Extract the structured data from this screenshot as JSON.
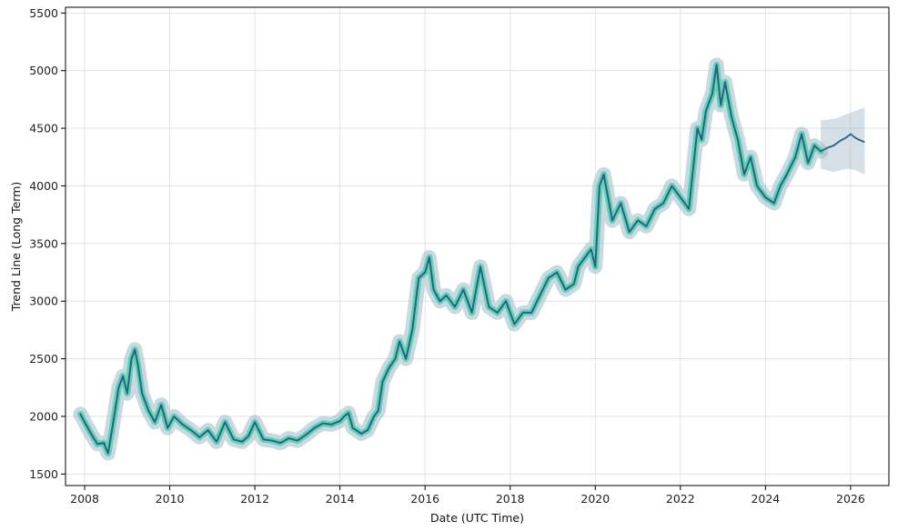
{
  "chart_data": {
    "type": "line",
    "title": "",
    "xlabel": "Date (UTC Time)",
    "ylabel": "Trend Line (Long Term)",
    "xlim": [
      2007.55,
      2026.9
    ],
    "ylim": [
      1400,
      5550
    ],
    "x_ticks": [
      "2008",
      "2010",
      "2012",
      "2014",
      "2016",
      "2018",
      "2020",
      "2022",
      "2024",
      "2026"
    ],
    "x_tick_values": [
      2008,
      2010,
      2012,
      2014,
      2016,
      2018,
      2020,
      2022,
      2024,
      2026
    ],
    "y_ticks": [
      "1500",
      "2000",
      "2500",
      "3000",
      "3500",
      "4000",
      "4500",
      "5000",
      "5500"
    ],
    "y_tick_values": [
      1500,
      2000,
      2500,
      3000,
      3500,
      4000,
      4500,
      5000,
      5500
    ],
    "grid": true,
    "colors": {
      "history_glow": "#5fd3b4",
      "trend_line": "#2c5f86",
      "confidence_band": "#9fb8c9"
    },
    "series": [
      {
        "role": "history",
        "x": [
          2007.9,
          2008.0,
          2008.15,
          2008.3,
          2008.45,
          2008.55,
          2008.65,
          2008.8,
          2008.9,
          2009.0,
          2009.1,
          2009.18,
          2009.25,
          2009.35,
          2009.5,
          2009.65,
          2009.8,
          2009.95,
          2010.1,
          2010.3,
          2010.5,
          2010.7,
          2010.9,
          2011.1,
          2011.3,
          2011.5,
          2011.7,
          2011.85,
          2012.0,
          2012.2,
          2012.4,
          2012.6,
          2012.8,
          2013.0,
          2013.2,
          2013.4,
          2013.6,
          2013.8,
          2014.0,
          2014.1,
          2014.2,
          2014.3,
          2014.5,
          2014.65,
          2014.8,
          2014.9,
          2015.0,
          2015.15,
          2015.3,
          2015.4,
          2015.55,
          2015.7,
          2015.85,
          2016.0,
          2016.1,
          2016.2,
          2016.35,
          2016.5,
          2016.7,
          2016.9,
          2017.1,
          2017.3,
          2017.5,
          2017.7,
          2017.9,
          2018.1,
          2018.3,
          2018.5,
          2018.7,
          2018.9,
          2019.1,
          2019.3,
          2019.5,
          2019.6,
          2019.8,
          2019.9,
          2020.0,
          2020.1,
          2020.2,
          2020.4,
          2020.6,
          2020.8,
          2021.0,
          2021.2,
          2021.4,
          2021.6,
          2021.8,
          2022.0,
          2022.2,
          2022.4,
          2022.5,
          2022.6,
          2022.75,
          2022.85,
          2022.95,
          2023.05,
          2023.2,
          2023.35,
          2023.5,
          2023.65,
          2023.8,
          2024.0,
          2024.2,
          2024.35,
          2024.5,
          2024.7,
          2024.85,
          2025.0,
          2025.15,
          2025.3
        ],
        "y": [
          2020,
          1950,
          1850,
          1760,
          1770,
          1680,
          1900,
          2250,
          2350,
          2200,
          2500,
          2580,
          2450,
          2200,
          2050,
          1950,
          2100,
          1900,
          2000,
          1930,
          1880,
          1820,
          1880,
          1780,
          1950,
          1800,
          1780,
          1830,
          1950,
          1800,
          1790,
          1770,
          1810,
          1790,
          1840,
          1900,
          1940,
          1930,
          1960,
          2000,
          2030,
          1900,
          1850,
          1880,
          2000,
          2050,
          2300,
          2420,
          2500,
          2650,
          2500,
          2750,
          3200,
          3250,
          3380,
          3100,
          3000,
          3050,
          2950,
          3100,
          2900,
          3300,
          2950,
          2900,
          3000,
          2800,
          2900,
          2900,
          3050,
          3200,
          3250,
          3100,
          3150,
          3300,
          3400,
          3450,
          3300,
          4000,
          4100,
          3700,
          3850,
          3600,
          3700,
          3650,
          3800,
          3850,
          4000,
          3900,
          3800,
          4500,
          4400,
          4650,
          4800,
          5050,
          4700,
          4900,
          4600,
          4400,
          4100,
          4250,
          4000,
          3900,
          3850,
          4000,
          4100,
          4250,
          4450,
          4200,
          4350,
          4300
        ]
      },
      {
        "role": "forecast",
        "x": [
          2025.3,
          2025.45,
          2025.6,
          2025.75,
          2025.9,
          2026.0,
          2026.1,
          2026.2,
          2026.33
        ],
        "y": [
          4300,
          4330,
          4350,
          4390,
          4420,
          4450,
          4420,
          4400,
          4380
        ]
      }
    ],
    "confidence_band": {
      "x": [
        2025.3,
        2025.6,
        2025.9,
        2026.1,
        2026.33
      ],
      "lower": [
        4150,
        4120,
        4150,
        4140,
        4100
      ],
      "upper": [
        4570,
        4580,
        4620,
        4650,
        4680
      ]
    }
  }
}
